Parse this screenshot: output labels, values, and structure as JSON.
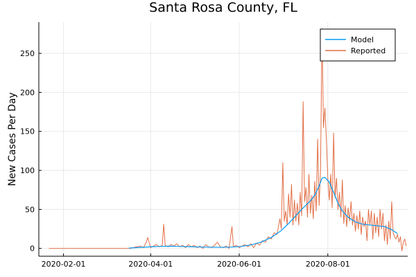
{
  "chart_data": {
    "type": "line",
    "title": "Santa Rosa County, FL",
    "xlabel": "",
    "ylabel": "New Cases Per Day",
    "x_axis": {
      "type": "date",
      "range": [
        "2020-01-15",
        "2020-09-25"
      ],
      "ticks": [
        "2020-02-01",
        "2020-04-01",
        "2020-06-01",
        "2020-08-01"
      ]
    },
    "y_axis": {
      "range": [
        -10,
        290
      ],
      "ticks": [
        0,
        50,
        100,
        150,
        200,
        250
      ]
    },
    "grid": true,
    "legend": {
      "position": "top-right"
    },
    "series": [
      {
        "name": "Model",
        "color": "#009af9",
        "points": [
          [
            "2020-03-17",
            0.5
          ],
          [
            "2020-03-24",
            1.2
          ],
          [
            "2020-03-31",
            2.0
          ],
          [
            "2020-04-07",
            2.6
          ],
          [
            "2020-04-14",
            2.9
          ],
          [
            "2020-04-21",
            2.6
          ],
          [
            "2020-04-28",
            2.2
          ],
          [
            "2020-05-05",
            1.8
          ],
          [
            "2020-05-12",
            1.6
          ],
          [
            "2020-05-19",
            1.5
          ],
          [
            "2020-05-26",
            1.7
          ],
          [
            "2020-06-02",
            2.5
          ],
          [
            "2020-06-09",
            4.5
          ],
          [
            "2020-06-16",
            8.0
          ],
          [
            "2020-06-23",
            14.0
          ],
          [
            "2020-06-30",
            23.0
          ],
          [
            "2020-07-05",
            32.0
          ],
          [
            "2020-07-10",
            42.0
          ],
          [
            "2020-07-15",
            52.0
          ],
          [
            "2020-07-20",
            61.0
          ],
          [
            "2020-07-23",
            68.0
          ],
          [
            "2020-07-26",
            80.0
          ],
          [
            "2020-07-28",
            90.0
          ],
          [
            "2020-07-30",
            91.0
          ],
          [
            "2020-08-02",
            85.0
          ],
          [
            "2020-08-05",
            72.0
          ],
          [
            "2020-08-08",
            58.0
          ],
          [
            "2020-08-11",
            48.0
          ],
          [
            "2020-08-15",
            40.0
          ],
          [
            "2020-08-20",
            34.0
          ],
          [
            "2020-08-25",
            31.0
          ],
          [
            "2020-08-30",
            30.0
          ],
          [
            "2020-09-04",
            29.0
          ],
          [
            "2020-09-09",
            28.0
          ],
          [
            "2020-09-14",
            24.0
          ],
          [
            "2020-09-18",
            19.0
          ]
        ]
      },
      {
        "name": "Reported",
        "color": "#e26f46",
        "points": [
          [
            "2020-01-22",
            0
          ],
          [
            "2020-02-10",
            0
          ],
          [
            "2020-03-01",
            0
          ],
          [
            "2020-03-10",
            0
          ],
          [
            "2020-03-18",
            0
          ],
          [
            "2020-03-22",
            2
          ],
          [
            "2020-03-25",
            3
          ],
          [
            "2020-03-27",
            1
          ],
          [
            "2020-03-29",
            8
          ],
          [
            "2020-03-30",
            14
          ],
          [
            "2020-04-01",
            1
          ],
          [
            "2020-04-03",
            3
          ],
          [
            "2020-04-05",
            5
          ],
          [
            "2020-04-07",
            2
          ],
          [
            "2020-04-09",
            4
          ],
          [
            "2020-04-10",
            31
          ],
          [
            "2020-04-11",
            4
          ],
          [
            "2020-04-13",
            2
          ],
          [
            "2020-04-15",
            5
          ],
          [
            "2020-04-17",
            3
          ],
          [
            "2020-04-19",
            6
          ],
          [
            "2020-04-21",
            2
          ],
          [
            "2020-04-23",
            4
          ],
          [
            "2020-04-25",
            1
          ],
          [
            "2020-04-27",
            5
          ],
          [
            "2020-04-29",
            2
          ],
          [
            "2020-05-01",
            4
          ],
          [
            "2020-05-03",
            1
          ],
          [
            "2020-05-05",
            3
          ],
          [
            "2020-05-07",
            0
          ],
          [
            "2020-05-09",
            5
          ],
          [
            "2020-05-11",
            2
          ],
          [
            "2020-05-13",
            1
          ],
          [
            "2020-05-15",
            4
          ],
          [
            "2020-05-17",
            8
          ],
          [
            "2020-05-19",
            2
          ],
          [
            "2020-05-21",
            1
          ],
          [
            "2020-05-23",
            3
          ],
          [
            "2020-05-25",
            0
          ],
          [
            "2020-05-27",
            28
          ],
          [
            "2020-05-28",
            2
          ],
          [
            "2020-05-30",
            4
          ],
          [
            "2020-06-01",
            1
          ],
          [
            "2020-06-03",
            3
          ],
          [
            "2020-06-05",
            5
          ],
          [
            "2020-06-07",
            2
          ],
          [
            "2020-06-09",
            6
          ],
          [
            "2020-06-11",
            1
          ],
          [
            "2020-06-13",
            7
          ],
          [
            "2020-06-15",
            4
          ],
          [
            "2020-06-17",
            10
          ],
          [
            "2020-06-19",
            8
          ],
          [
            "2020-06-21",
            15
          ],
          [
            "2020-06-23",
            12
          ],
          [
            "2020-06-25",
            20
          ],
          [
            "2020-06-27",
            18
          ],
          [
            "2020-06-29",
            38
          ],
          [
            "2020-06-30",
            25
          ],
          [
            "2020-07-01",
            110
          ],
          [
            "2020-07-02",
            35
          ],
          [
            "2020-07-03",
            48
          ],
          [
            "2020-07-04",
            30
          ],
          [
            "2020-07-05",
            70
          ],
          [
            "2020-07-06",
            40
          ],
          [
            "2020-07-07",
            82
          ],
          [
            "2020-07-08",
            30
          ],
          [
            "2020-07-09",
            62
          ],
          [
            "2020-07-10",
            35
          ],
          [
            "2020-07-11",
            58
          ],
          [
            "2020-07-12",
            30
          ],
          [
            "2020-07-13",
            72
          ],
          [
            "2020-07-14",
            42
          ],
          [
            "2020-07-15",
            188
          ],
          [
            "2020-07-16",
            60
          ],
          [
            "2020-07-17",
            78
          ],
          [
            "2020-07-18",
            40
          ],
          [
            "2020-07-19",
            95
          ],
          [
            "2020-07-20",
            45
          ],
          [
            "2020-07-21",
            68
          ],
          [
            "2020-07-22",
            38
          ],
          [
            "2020-07-23",
            86
          ],
          [
            "2020-07-24",
            48
          ],
          [
            "2020-07-25",
            140
          ],
          [
            "2020-07-26",
            55
          ],
          [
            "2020-07-27",
            100
          ],
          [
            "2020-07-28",
            282
          ],
          [
            "2020-07-29",
            155
          ],
          [
            "2020-07-30",
            180
          ],
          [
            "2020-07-31",
            140
          ],
          [
            "2020-08-01",
            90
          ],
          [
            "2020-08-02",
            62
          ],
          [
            "2020-08-03",
            95
          ],
          [
            "2020-08-04",
            52
          ],
          [
            "2020-08-05",
            148
          ],
          [
            "2020-08-06",
            65
          ],
          [
            "2020-08-07",
            90
          ],
          [
            "2020-08-08",
            50
          ],
          [
            "2020-08-09",
            72
          ],
          [
            "2020-08-10",
            40
          ],
          [
            "2020-08-11",
            88
          ],
          [
            "2020-08-12",
            32
          ],
          [
            "2020-08-13",
            55
          ],
          [
            "2020-08-14",
            28
          ],
          [
            "2020-08-15",
            52
          ],
          [
            "2020-08-16",
            35
          ],
          [
            "2020-08-17",
            60
          ],
          [
            "2020-08-18",
            30
          ],
          [
            "2020-08-19",
            45
          ],
          [
            "2020-08-20",
            22
          ],
          [
            "2020-08-21",
            42
          ],
          [
            "2020-08-22",
            25
          ],
          [
            "2020-08-23",
            48
          ],
          [
            "2020-08-24",
            18
          ],
          [
            "2020-08-25",
            40
          ],
          [
            "2020-08-26",
            28
          ],
          [
            "2020-08-27",
            35
          ],
          [
            "2020-08-28",
            10
          ],
          [
            "2020-08-29",
            50
          ],
          [
            "2020-08-30",
            30
          ],
          [
            "2020-08-31",
            48
          ],
          [
            "2020-09-01",
            12
          ],
          [
            "2020-09-02",
            45
          ],
          [
            "2020-09-03",
            20
          ],
          [
            "2020-09-04",
            40
          ],
          [
            "2020-09-05",
            15
          ],
          [
            "2020-09-06",
            50
          ],
          [
            "2020-09-07",
            25
          ],
          [
            "2020-09-08",
            45
          ],
          [
            "2020-09-09",
            10
          ],
          [
            "2020-09-10",
            30
          ],
          [
            "2020-09-11",
            5
          ],
          [
            "2020-09-12",
            35
          ],
          [
            "2020-09-13",
            12
          ],
          [
            "2020-09-14",
            60
          ],
          [
            "2020-09-15",
            20
          ],
          [
            "2020-09-16",
            15
          ],
          [
            "2020-09-17",
            12
          ],
          [
            "2020-09-18",
            18
          ],
          [
            "2020-09-19",
            8
          ],
          [
            "2020-09-20",
            15
          ],
          [
            "2020-09-21",
            -3
          ],
          [
            "2020-09-22",
            8
          ],
          [
            "2020-09-23",
            12
          ],
          [
            "2020-09-24",
            3
          ]
        ]
      }
    ]
  }
}
